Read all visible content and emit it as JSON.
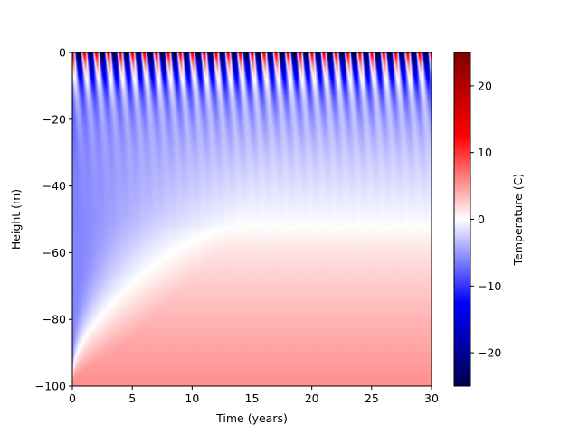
{
  "chart_data": {
    "type": "heatmap",
    "title": "",
    "xlabel": "Time (years)",
    "ylabel": "Height (m)",
    "xlim": [
      0,
      30
    ],
    "ylim": [
      -100,
      0
    ],
    "x_ticks": [
      0,
      5,
      10,
      15,
      20,
      25,
      30
    ],
    "y_ticks": [
      0,
      -20,
      -40,
      -60,
      -80,
      -100
    ],
    "colorbar": {
      "label": "Temperature (C)",
      "range": [
        -25,
        25
      ],
      "ticks": [
        20,
        10,
        0,
        -10,
        -20
      ],
      "colormap": "seismic",
      "colors": {
        "low": "#00004d",
        "blue": "#0000ff",
        "mid": "#ffffff",
        "red": "#ff0000",
        "high": "#800000"
      }
    },
    "field": {
      "description_units": "Temperature (C)",
      "surface_amplitude": 25,
      "annual_cycles": 30,
      "initial_temperature": -6,
      "bottom_temperature": 5.5,
      "zero_crossing_height": -52
    },
    "grid": false,
    "legend": "colorbar-right"
  }
}
